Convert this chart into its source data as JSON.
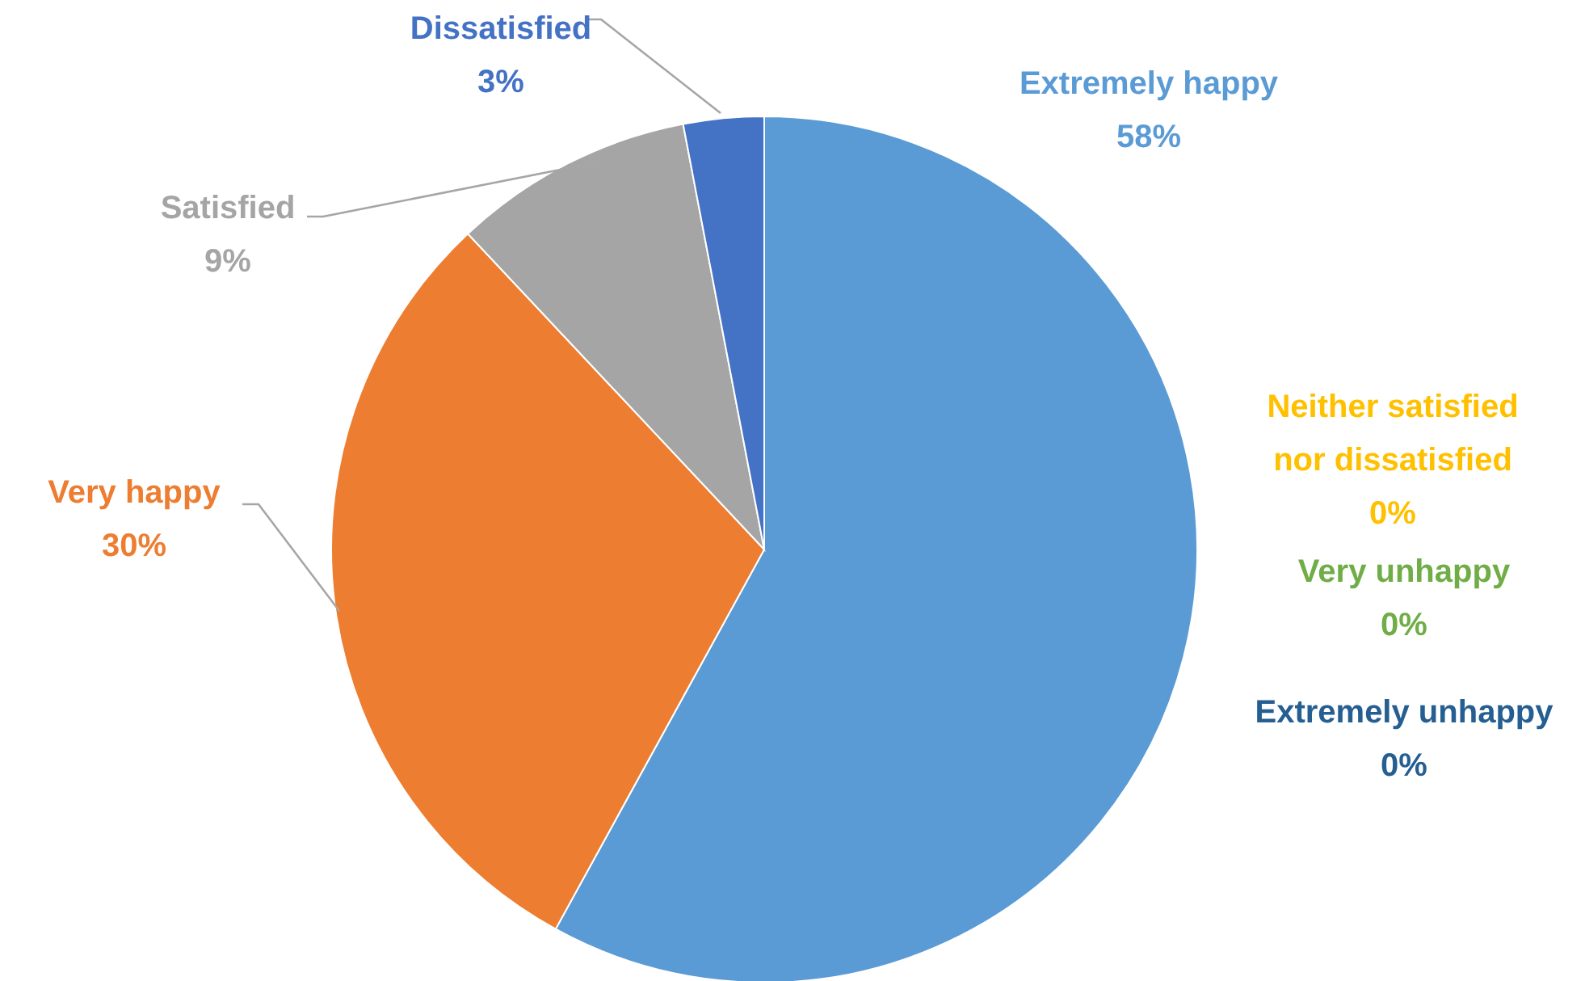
{
  "chart_data": {
    "type": "pie",
    "categories": [
      "Extremely happy",
      "Very happy",
      "Satisfied",
      "Neither satisfied nor dissatisfied",
      "Dissatisfied",
      "Very unhappy",
      "Extremely unhappy"
    ],
    "values": [
      58,
      30,
      9,
      0,
      3,
      0,
      0
    ],
    "colors": [
      "#5b9bd5",
      "#ed7d31",
      "#a5a5a5",
      "#ffc000",
      "#4472c4",
      "#70ad47",
      "#255e91"
    ],
    "value_labels": [
      "58%",
      "30%",
      "9%",
      "0%",
      "3%",
      "0%",
      "0%"
    ]
  }
}
